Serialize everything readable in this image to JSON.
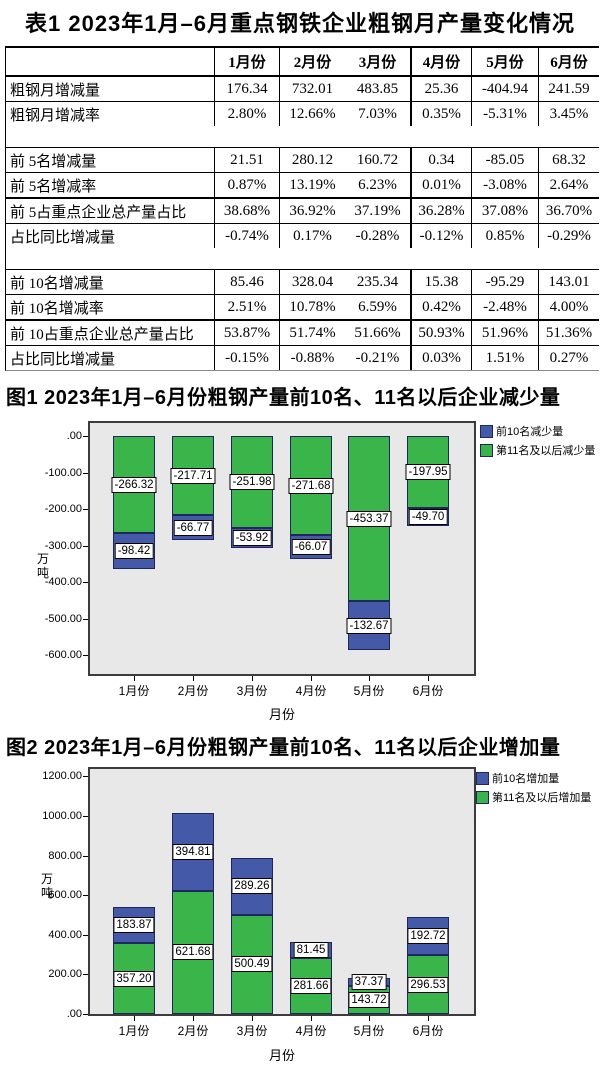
{
  "table": {
    "title": "表1 2023年1月–6月重点钢铁企业粗钢月产量变化情况",
    "header": [
      "",
      "1月份",
      "2月份",
      "3月份",
      "4月份",
      "5月份",
      "6月份"
    ],
    "rows": [
      {
        "type": "data",
        "label": "粗钢月增减量",
        "values": [
          "176.34",
          "732.01",
          "483.85",
          "25.36",
          "-404.94",
          "241.59"
        ]
      },
      {
        "type": "data",
        "label": "粗钢月增减率",
        "values": [
          "2.80%",
          "12.66%",
          "7.03%",
          "0.35%",
          "-5.31%",
          "3.45%"
        ]
      },
      {
        "type": "empty",
        "label": "",
        "values": []
      },
      {
        "type": "data",
        "label": "前 5名增减量",
        "values": [
          "21.51",
          "280.12",
          "160.72",
          "0.34",
          "-85.05",
          "68.32"
        ]
      },
      {
        "type": "data",
        "label": "前 5名增减率",
        "values": [
          "0.87%",
          "13.19%",
          "6.23%",
          "0.01%",
          "-3.08%",
          "2.64%"
        ]
      },
      {
        "type": "data",
        "label": "前 5占重点企业总产量占比",
        "values": [
          "38.68%",
          "36.92%",
          "37.19%",
          "36.28%",
          "37.08%",
          "36.70%"
        ]
      },
      {
        "type": "data",
        "label": "占比同比增减量",
        "values": [
          "-0.74%",
          "0.17%",
          "-0.28%",
          "-0.12%",
          "0.85%",
          "-0.29%"
        ]
      },
      {
        "type": "empty",
        "label": "",
        "values": []
      },
      {
        "type": "data",
        "label": "前 10名增减量",
        "values": [
          "85.46",
          "328.04",
          "235.34",
          "15.38",
          "-95.29",
          "143.01"
        ]
      },
      {
        "type": "data",
        "label": "前 10名增减率",
        "values": [
          "2.51%",
          "10.78%",
          "6.59%",
          "0.42%",
          "-2.48%",
          "4.00%"
        ]
      },
      {
        "type": "data",
        "label": "前 10占重点企业总产量占比",
        "values": [
          "53.87%",
          "51.74%",
          "51.66%",
          "50.93%",
          "51.96%",
          "51.36%"
        ]
      },
      {
        "type": "data",
        "label": "占比同比增减量",
        "values": [
          "-0.15%",
          "-0.88%",
          "-0.21%",
          "0.03%",
          "1.51%",
          "0.27%"
        ]
      }
    ]
  },
  "colors": {
    "bar_blue": "#4459a8",
    "bar_green": "#3ab54a",
    "bar_border": "#20265e",
    "plot_bg": "#e8e8e8"
  },
  "chart_data": [
    {
      "type": "bar",
      "stacked": true,
      "grid": false,
      "title": "图1 2023年1月–6月份粗钢产量前10名、11名以后企业减少量",
      "categories": [
        "1月份",
        "2月份",
        "3月份",
        "4月份",
        "5月份",
        "6月份"
      ],
      "series": [
        {
          "name": "前10名减少量",
          "color": "#4459a8",
          "values": [
            -98.42,
            -66.77,
            -53.92,
            -66.07,
            -132.67,
            -49.7
          ]
        },
        {
          "name": "第11名及以后减少量",
          "color": "#3ab54a",
          "values": [
            -266.32,
            -217.71,
            -251.98,
            -271.68,
            -453.37,
            -197.95
          ]
        }
      ],
      "xlabel": "月份",
      "ylabel": "万吨",
      "ylim": [
        -650,
        0
      ],
      "yticks": [
        0,
        -100,
        -200,
        -300,
        -400,
        -500,
        -600
      ],
      "ytick_labels": [
        ".00",
        "-100.00",
        "-200.00",
        "-300.00",
        "-400.00",
        "-500.00",
        "-600.00"
      ],
      "legend_position": "top-right-outside"
    },
    {
      "type": "bar",
      "stacked": true,
      "grid": false,
      "title": "图2  2023年1月–6月份粗钢产量前10名、11名以后企业增加量",
      "categories": [
        "1月份",
        "2月份",
        "3月份",
        "4月份",
        "5月份",
        "6月份"
      ],
      "series": [
        {
          "name": "前10名增加量",
          "color": "#4459a8",
          "values": [
            183.87,
            394.81,
            289.26,
            81.45,
            37.37,
            192.72
          ]
        },
        {
          "name": "第11名及以后增加量",
          "color": "#3ab54a",
          "values": [
            357.2,
            621.68,
            500.49,
            281.66,
            143.72,
            296.53
          ]
        }
      ],
      "xlabel": "月份",
      "ylabel": "万吨",
      "ylim": [
        0,
        1250
      ],
      "yticks": [
        1200,
        1000,
        800,
        600,
        400,
        200,
        0
      ],
      "ytick_labels": [
        "1200.00",
        "1000.00",
        "800.00",
        "600.00",
        "400.00",
        "200.00",
        ".00"
      ],
      "legend_position": "top-right-outside"
    }
  ]
}
